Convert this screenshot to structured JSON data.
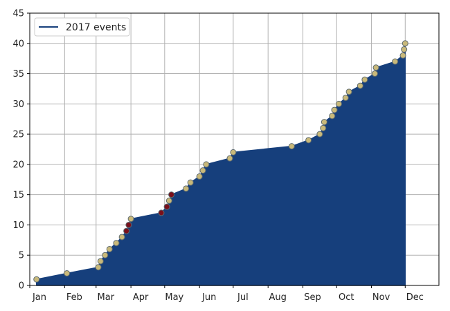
{
  "chart_data": {
    "type": "area",
    "title": "",
    "xlabel": "",
    "ylabel": "",
    "ylim": [
      0,
      45
    ],
    "yticks": [
      0,
      5,
      10,
      15,
      20,
      25,
      30,
      35,
      40,
      45
    ],
    "xlim": [
      "2017-01-01",
      "2017-12-31"
    ],
    "xticks": [
      {
        "label": "Jan",
        "date": "2017-01-01"
      },
      {
        "label": "Feb",
        "date": "2017-02-01"
      },
      {
        "label": "Mar",
        "date": "2017-03-01"
      },
      {
        "label": "Apr",
        "date": "2017-04-01"
      },
      {
        "label": "May",
        "date": "2017-05-01"
      },
      {
        "label": "Jun",
        "date": "2017-06-01"
      },
      {
        "label": "Jul",
        "date": "2017-07-01"
      },
      {
        "label": "Aug",
        "date": "2017-08-01"
      },
      {
        "label": "Sep",
        "date": "2017-09-01"
      },
      {
        "label": "Oct",
        "date": "2017-10-01"
      },
      {
        "label": "Nov",
        "date": "2017-11-01"
      },
      {
        "label": "Dec",
        "date": "2017-12-01"
      }
    ],
    "grid": true,
    "legend_position": "top-left",
    "series": [
      {
        "name": "2017 events",
        "fill_color": "#163f7c",
        "line_color": "#163f7c",
        "points": [
          {
            "date": "2017-01-07",
            "count": 1,
            "highlight": false
          },
          {
            "date": "2017-02-03",
            "count": 2,
            "highlight": false
          },
          {
            "date": "2017-03-03",
            "count": 3,
            "highlight": false
          },
          {
            "date": "2017-03-05",
            "count": 4,
            "highlight": false
          },
          {
            "date": "2017-03-09",
            "count": 5,
            "highlight": false
          },
          {
            "date": "2017-03-13",
            "count": 6,
            "highlight": false
          },
          {
            "date": "2017-03-19",
            "count": 7,
            "highlight": false
          },
          {
            "date": "2017-03-24",
            "count": 8,
            "highlight": false
          },
          {
            "date": "2017-03-28",
            "count": 9,
            "highlight": true
          },
          {
            "date": "2017-03-30",
            "count": 10,
            "highlight": true
          },
          {
            "date": "2017-04-01",
            "count": 11,
            "highlight": false
          },
          {
            "date": "2017-04-28",
            "count": 12,
            "highlight": true
          },
          {
            "date": "2017-05-03",
            "count": 13,
            "highlight": true
          },
          {
            "date": "2017-05-05",
            "count": 14,
            "highlight": false
          },
          {
            "date": "2017-05-07",
            "count": 15,
            "highlight": true
          },
          {
            "date": "2017-05-20",
            "count": 16,
            "highlight": false
          },
          {
            "date": "2017-05-24",
            "count": 17,
            "highlight": false
          },
          {
            "date": "2017-06-01",
            "count": 18,
            "highlight": false
          },
          {
            "date": "2017-06-04",
            "count": 19,
            "highlight": false
          },
          {
            "date": "2017-06-07",
            "count": 20,
            "highlight": false
          },
          {
            "date": "2017-06-28",
            "count": 21,
            "highlight": false
          },
          {
            "date": "2017-07-01",
            "count": 22,
            "highlight": false
          },
          {
            "date": "2017-08-22",
            "count": 23,
            "highlight": false
          },
          {
            "date": "2017-09-06",
            "count": 24,
            "highlight": false
          },
          {
            "date": "2017-09-16",
            "count": 25,
            "highlight": false
          },
          {
            "date": "2017-09-19",
            "count": 26,
            "highlight": false
          },
          {
            "date": "2017-09-20",
            "count": 27,
            "highlight": false
          },
          {
            "date": "2017-09-27",
            "count": 28,
            "highlight": false
          },
          {
            "date": "2017-09-29",
            "count": 29,
            "highlight": false
          },
          {
            "date": "2017-10-03",
            "count": 30,
            "highlight": false
          },
          {
            "date": "2017-10-09",
            "count": 31,
            "highlight": false
          },
          {
            "date": "2017-10-12",
            "count": 32,
            "highlight": false
          },
          {
            "date": "2017-10-22",
            "count": 33,
            "highlight": false
          },
          {
            "date": "2017-10-26",
            "count": 34,
            "highlight": false
          },
          {
            "date": "2017-11-04",
            "count": 35,
            "highlight": false
          },
          {
            "date": "2017-11-05",
            "count": 36,
            "highlight": false
          },
          {
            "date": "2017-11-22",
            "count": 37,
            "highlight": false
          },
          {
            "date": "2017-11-29",
            "count": 38,
            "highlight": false
          },
          {
            "date": "2017-11-30",
            "count": 39,
            "highlight": false
          },
          {
            "date": "2017-12-01",
            "count": 40,
            "highlight": false
          }
        ]
      }
    ],
    "marker_color": "#c9b97a",
    "marker_edge_color": "#5e6a6e",
    "highlight_marker_color": "#7a0f1b"
  }
}
